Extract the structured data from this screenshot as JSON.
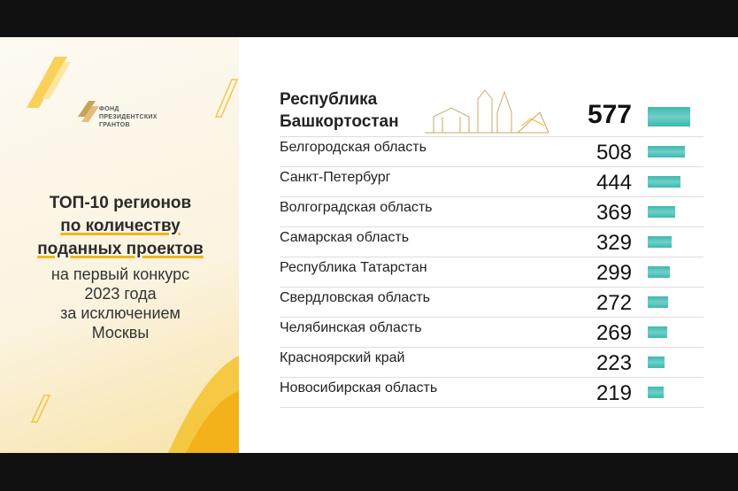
{
  "chart_data": {
    "type": "bar",
    "logo": [
      "ФОНД",
      "ПРЕЗИДЕНТСКИХ",
      "ГРАНТОВ"
    ],
    "title": [
      "ТОП-10 регионов",
      "по количеству",
      "поданных проектов"
    ],
    "subtitle": [
      "на первый конкурс",
      "2023 года",
      "за исключением",
      "Москвы"
    ],
    "categories": [
      "Республика Башкортостан",
      "Белгородская область",
      "Санкт-Петербург",
      "Волгоградская область",
      "Самарская область",
      "Республика Татарстан",
      "Свердловская область",
      "Челябинская область",
      "Красноярский край",
      "Новосибирская область"
    ],
    "values": [
      577,
      508,
      444,
      369,
      329,
      299,
      272,
      269,
      223,
      219
    ],
    "color": "#3db8ae"
  }
}
